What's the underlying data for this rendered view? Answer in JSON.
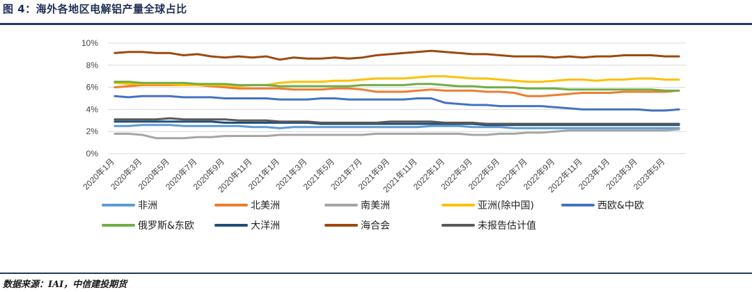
{
  "figure": {
    "title": "图 4：海外各地区电解铝产量全球占比",
    "source": "数据来源：IAI，中信建投期货"
  },
  "chart_data": {
    "type": "line",
    "x": [
      "2020年1月",
      "2020年2月",
      "2020年3月",
      "2020年4月",
      "2020年5月",
      "2020年6月",
      "2020年7月",
      "2020年8月",
      "2020年9月",
      "2020年10月",
      "2020年11月",
      "2020年12月",
      "2021年1月",
      "2021年2月",
      "2021年3月",
      "2021年4月",
      "2021年5月",
      "2021年6月",
      "2021年7月",
      "2021年8月",
      "2021年9月",
      "2021年10月",
      "2021年11月",
      "2021年12月",
      "2022年1月",
      "2022年2月",
      "2022年3月",
      "2022年4月",
      "2022年5月",
      "2022年6月",
      "2022年7月",
      "2022年8月",
      "2022年9月",
      "2022年10月",
      "2022年11月",
      "2022年12月",
      "2023年1月",
      "2023年2月",
      "2023年3月",
      "2023年4月",
      "2023年5月",
      "2023年6月"
    ],
    "x_tick_labels": [
      "2020年1月",
      "2020年3月",
      "2020年5月",
      "2020年7月",
      "2020年9月",
      "2020年11月",
      "2021年1月",
      "2021年3月",
      "2021年5月",
      "2021年7月",
      "2021年9月",
      "2021年11月",
      "2022年1月",
      "2022年3月",
      "2022年5月",
      "2022年7月",
      "2022年9月",
      "2022年11月",
      "2023年1月",
      "2023年3月",
      "2023年5月"
    ],
    "y_ticks": [
      "0%",
      "2%",
      "4%",
      "6%",
      "8%",
      "10%"
    ],
    "ylim": [
      0,
      10
    ],
    "grid": "horizontal",
    "legend_position": "bottom",
    "series": [
      {
        "name": "非洲",
        "color": "#5b9bd5",
        "values": [
          2.5,
          2.5,
          2.6,
          2.6,
          2.6,
          2.5,
          2.5,
          2.5,
          2.5,
          2.5,
          2.4,
          2.4,
          2.3,
          2.4,
          2.4,
          2.4,
          2.4,
          2.4,
          2.4,
          2.4,
          2.4,
          2.4,
          2.4,
          2.5,
          2.5,
          2.5,
          2.4,
          2.4,
          2.4,
          2.3,
          2.3,
          2.3,
          2.3,
          2.3,
          2.3,
          2.3,
          2.3,
          2.3,
          2.3,
          2.3,
          2.3,
          2.3
        ]
      },
      {
        "name": "北美洲",
        "color": "#ed7d31",
        "values": [
          6.0,
          6.1,
          6.2,
          6.2,
          6.2,
          6.2,
          6.2,
          6.1,
          6.0,
          5.9,
          5.9,
          5.9,
          5.9,
          5.8,
          5.8,
          5.8,
          5.9,
          5.9,
          5.8,
          5.6,
          5.6,
          5.6,
          5.7,
          5.8,
          5.7,
          5.7,
          5.7,
          5.6,
          5.6,
          5.5,
          5.2,
          5.2,
          5.3,
          5.4,
          5.5,
          5.5,
          5.5,
          5.6,
          5.6,
          5.6,
          5.6,
          5.7
        ]
      },
      {
        "name": "南美洲",
        "color": "#a5a5a5",
        "values": [
          1.8,
          1.8,
          1.7,
          1.4,
          1.4,
          1.4,
          1.5,
          1.5,
          1.6,
          1.6,
          1.6,
          1.6,
          1.7,
          1.7,
          1.7,
          1.7,
          1.7,
          1.7,
          1.7,
          1.8,
          1.8,
          1.8,
          1.8,
          1.8,
          1.8,
          1.8,
          1.7,
          1.7,
          1.8,
          1.8,
          1.9,
          1.9,
          2.0,
          2.1,
          2.1,
          2.1,
          2.1,
          2.1,
          2.1,
          2.1,
          2.1,
          2.2
        ]
      },
      {
        "name": "亚洲(除中国)",
        "color": "#ffc000",
        "values": [
          6.4,
          6.3,
          6.3,
          6.3,
          6.3,
          6.2,
          6.2,
          6.2,
          6.2,
          6.1,
          6.2,
          6.2,
          6.4,
          6.5,
          6.5,
          6.5,
          6.6,
          6.6,
          6.7,
          6.8,
          6.8,
          6.8,
          6.9,
          7.0,
          7.0,
          6.9,
          6.8,
          6.8,
          6.7,
          6.6,
          6.5,
          6.5,
          6.6,
          6.7,
          6.7,
          6.6,
          6.7,
          6.7,
          6.8,
          6.8,
          6.7,
          6.7
        ]
      },
      {
        "name": "西欧&中欧",
        "color": "#4472c4",
        "values": [
          5.2,
          5.1,
          5.2,
          5.2,
          5.2,
          5.1,
          5.1,
          5.1,
          5.0,
          5.0,
          5.0,
          5.0,
          4.9,
          4.9,
          4.9,
          5.0,
          5.0,
          4.9,
          4.9,
          4.9,
          4.9,
          4.9,
          5.0,
          5.0,
          4.6,
          4.5,
          4.4,
          4.4,
          4.3,
          4.3,
          4.3,
          4.3,
          4.2,
          4.1,
          4.0,
          4.0,
          4.0,
          4.0,
          4.0,
          3.9,
          3.9,
          4.0
        ]
      },
      {
        "name": "俄罗斯&东欧",
        "color": "#70ad47",
        "values": [
          6.5,
          6.5,
          6.4,
          6.4,
          6.4,
          6.4,
          6.3,
          6.3,
          6.3,
          6.2,
          6.2,
          6.2,
          6.1,
          6.1,
          6.1,
          6.1,
          6.1,
          6.1,
          6.2,
          6.2,
          6.2,
          6.2,
          6.3,
          6.3,
          6.2,
          6.1,
          6.1,
          6.0,
          6.0,
          6.0,
          5.9,
          5.9,
          5.9,
          5.8,
          5.8,
          5.8,
          5.8,
          5.8,
          5.8,
          5.8,
          5.7,
          5.7
        ]
      },
      {
        "name": "大洋洲",
        "color": "#1f4e79",
        "values": [
          2.9,
          2.9,
          2.9,
          2.9,
          2.9,
          2.9,
          2.9,
          2.9,
          2.8,
          2.8,
          2.8,
          2.8,
          2.8,
          2.8,
          2.8,
          2.7,
          2.7,
          2.7,
          2.7,
          2.7,
          2.7,
          2.7,
          2.7,
          2.7,
          2.7,
          2.7,
          2.7,
          2.6,
          2.6,
          2.6,
          2.6,
          2.6,
          2.6,
          2.6,
          2.6,
          2.6,
          2.6,
          2.6,
          2.6,
          2.6,
          2.6,
          2.6
        ]
      },
      {
        "name": "海合会",
        "color": "#9e480e",
        "values": [
          9.1,
          9.2,
          9.2,
          9.1,
          9.1,
          8.9,
          9.0,
          8.8,
          8.7,
          8.8,
          8.7,
          8.8,
          8.5,
          8.7,
          8.6,
          8.6,
          8.7,
          8.6,
          8.7,
          8.9,
          9.0,
          9.1,
          9.2,
          9.3,
          9.2,
          9.1,
          9.0,
          9.0,
          8.9,
          8.8,
          8.8,
          8.8,
          8.7,
          8.8,
          8.7,
          8.8,
          8.8,
          8.9,
          8.9,
          8.9,
          8.8,
          8.8
        ]
      },
      {
        "name": "未报告估计值",
        "color": "#595959",
        "values": [
          3.1,
          3.1,
          3.1,
          3.1,
          3.2,
          3.1,
          3.1,
          3.1,
          3.1,
          3.0,
          3.0,
          3.0,
          2.9,
          2.9,
          2.9,
          2.8,
          2.8,
          2.8,
          2.8,
          2.8,
          2.9,
          2.9,
          2.9,
          2.9,
          2.8,
          2.8,
          2.8,
          2.7,
          2.7,
          2.7,
          2.7,
          2.7,
          2.7,
          2.7,
          2.7,
          2.7,
          2.7,
          2.7,
          2.7,
          2.7,
          2.7,
          2.7
        ]
      }
    ]
  }
}
